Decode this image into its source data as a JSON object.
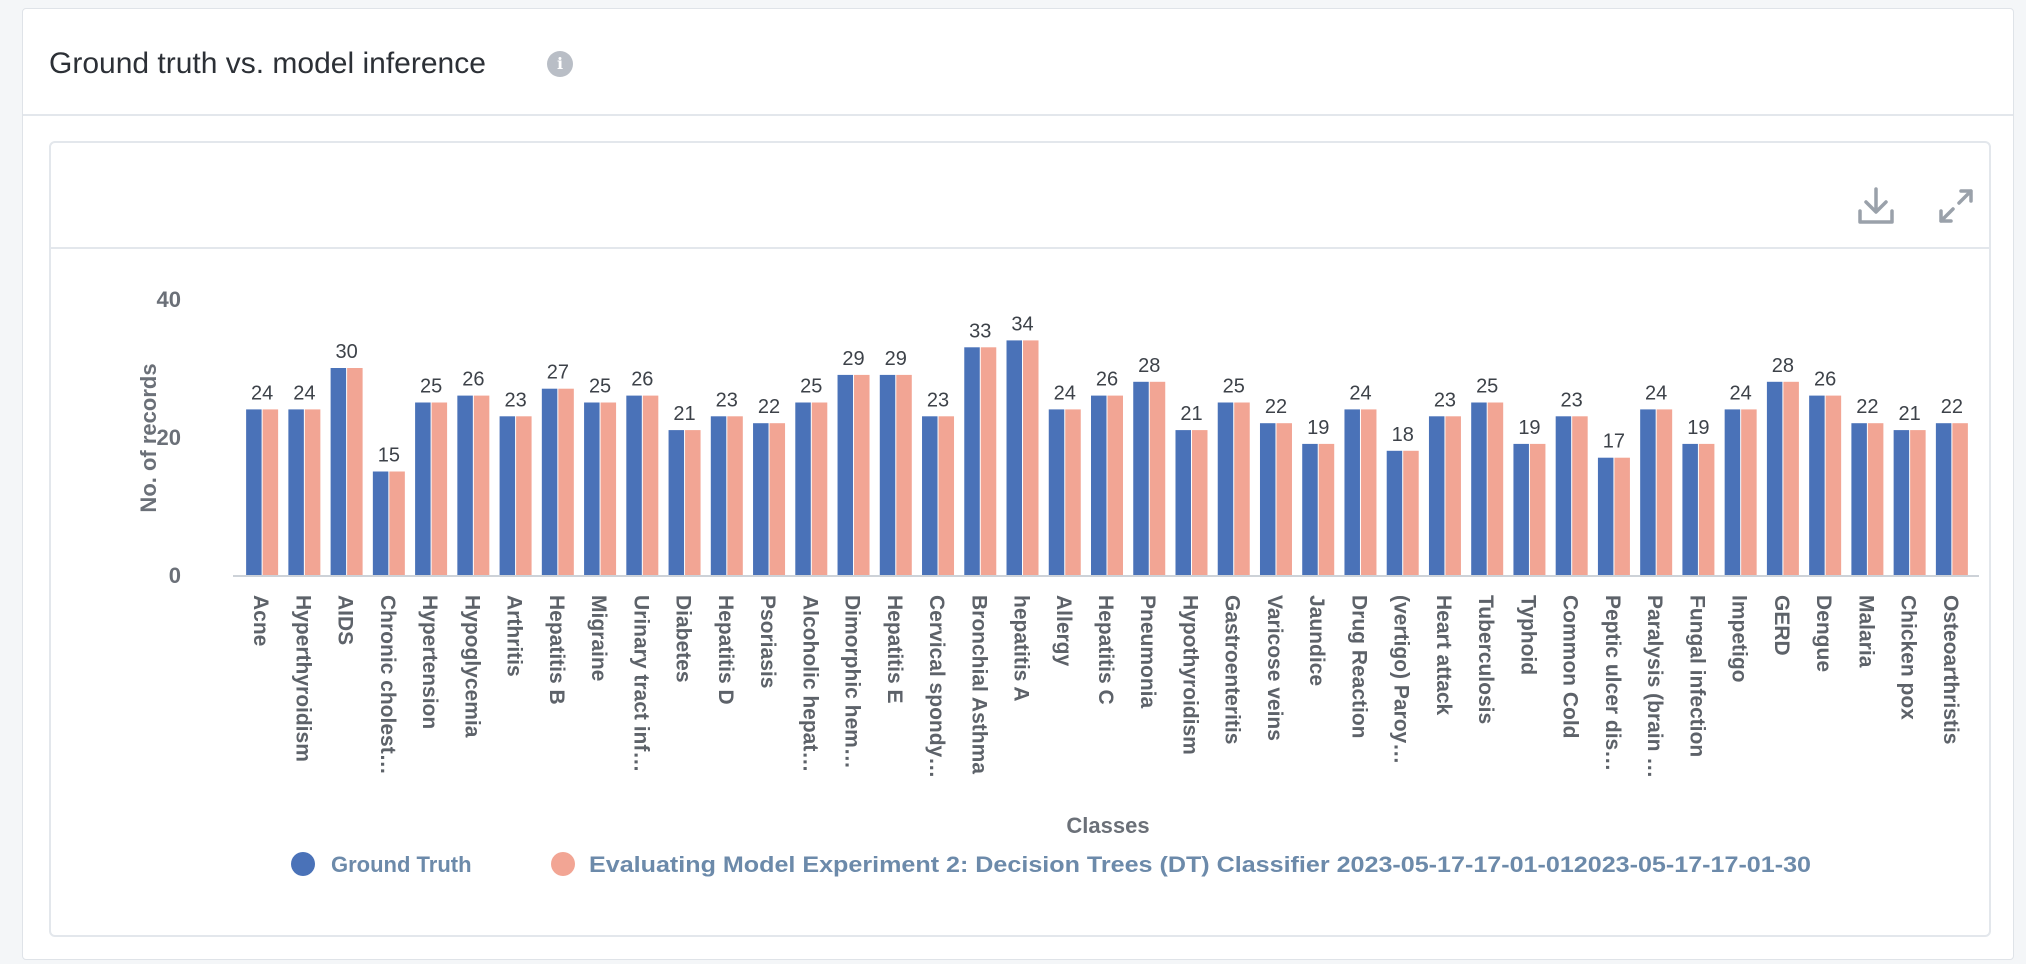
{
  "panel": {
    "title": "Ground truth vs. model inference"
  },
  "icons": {
    "info": "info-icon",
    "download": "download-icon",
    "expand": "expand-icon"
  },
  "colors": {
    "ground_truth": "#4a72b8",
    "model": "#f2a594"
  },
  "chart_data": {
    "type": "bar",
    "xlabel": "Classes",
    "ylabel": "No. of records",
    "ylim": [
      0,
      40
    ],
    "yticks": [
      0,
      20,
      40
    ],
    "grid": false,
    "legend_position": "bottom",
    "categories": [
      "Acne",
      "Hyperthyroidism",
      "AIDS",
      "Chronic cholest…",
      "Hypertension",
      "Hypoglycemia",
      "Arthritis",
      "Hepatitis B",
      "Migraine",
      "Urinary tract inf…",
      "Diabetes",
      "Hepatitis D",
      "Psoriasis",
      "Alcoholic hepat…",
      "Dimorphic hem…",
      "Hepatitis E",
      "Cervical spondy…",
      "Bronchial Asthma",
      "hepatitis A",
      "Allergy",
      "Hepatitis C",
      "Pneumonia",
      "Hypothyroidism",
      "Gastroenteritis",
      "Varicose veins",
      "Jaundice",
      "Drug Reaction",
      "(vertigo) Paroy…",
      "Heart attack",
      "Tuberculosis",
      "Typhoid",
      "Common Cold",
      "Peptic ulcer dis…",
      "Paralysis (brain …",
      "Fungal infection",
      "Impetigo",
      "GERD",
      "Dengue",
      "Malaria",
      "Chicken pox",
      "Osteoarthristis"
    ],
    "series": [
      {
        "name": "Ground Truth",
        "values": [
          24,
          24,
          30,
          15,
          25,
          26,
          23,
          27,
          25,
          26,
          21,
          23,
          22,
          25,
          29,
          29,
          23,
          33,
          34,
          24,
          26,
          28,
          21,
          25,
          22,
          19,
          24,
          18,
          23,
          25,
          19,
          23,
          17,
          24,
          19,
          24,
          28,
          26,
          22,
          21,
          22
        ]
      },
      {
        "name": "Evaluating Model Experiment 2: Decision Trees (DT) Classifier 2023-05-17-17-01-012023-05-17-17-01-30",
        "values": [
          24,
          24,
          30,
          15,
          25,
          26,
          23,
          27,
          25,
          26,
          21,
          23,
          22,
          25,
          29,
          29,
          23,
          33,
          34,
          24,
          26,
          28,
          21,
          25,
          22,
          19,
          24,
          18,
          23,
          25,
          19,
          23,
          17,
          24,
          19,
          24,
          28,
          26,
          22,
          21,
          22
        ]
      }
    ],
    "data_labels": [
      24,
      24,
      30,
      15,
      25,
      26,
      23,
      27,
      25,
      26,
      21,
      23,
      22,
      25,
      29,
      29,
      23,
      33,
      34,
      24,
      26,
      28,
      21,
      25,
      22,
      19,
      24,
      18,
      23,
      25,
      19,
      23,
      17,
      24,
      19,
      24,
      28,
      26,
      22,
      21,
      22
    ]
  }
}
